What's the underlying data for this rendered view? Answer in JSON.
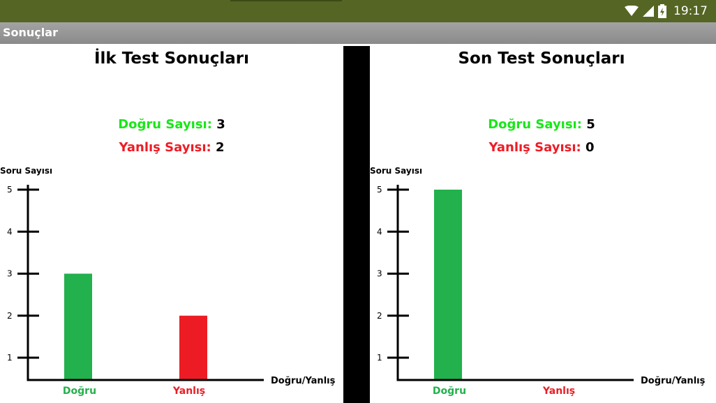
{
  "status_bar": {
    "time": "19:17",
    "icons": [
      "wifi-icon",
      "signal-icon",
      "battery-icon"
    ]
  },
  "action_bar": {
    "title": "Sonuçlar"
  },
  "panels": [
    {
      "title": "İlk Test Sonuçları",
      "correct_label": "Doğru Sayısı:",
      "correct_value": "3",
      "wrong_label": "Yanlış Sayısı:",
      "wrong_value": "2"
    },
    {
      "title": "Son Test Sonuçları",
      "correct_label": "Doğru Sayısı:",
      "correct_value": "5",
      "wrong_label": "Yanlış Sayısı:",
      "wrong_value": "0"
    }
  ],
  "colors": {
    "correct": "#22b14c",
    "wrong": "#ed1c24",
    "correct_text": "#19e619",
    "wrong_text": "#ee1c24"
  },
  "chart_data": [
    {
      "type": "bar",
      "categories": [
        "Doğru",
        "Yanlış"
      ],
      "values": [
        3,
        2
      ],
      "xlabel": "Doğru/Yanlış",
      "ylabel": "Soru Sayısı",
      "yticks": [
        1,
        2,
        3,
        4,
        5
      ],
      "ylim": [
        0.5,
        5
      ]
    },
    {
      "type": "bar",
      "categories": [
        "Doğru",
        "Yanlış"
      ],
      "values": [
        5,
        0
      ],
      "xlabel": "Doğru/Yanlış",
      "ylabel": "Soru Sayısı",
      "yticks": [
        1,
        2,
        3,
        4,
        5
      ],
      "ylim": [
        0.5,
        5
      ]
    }
  ]
}
